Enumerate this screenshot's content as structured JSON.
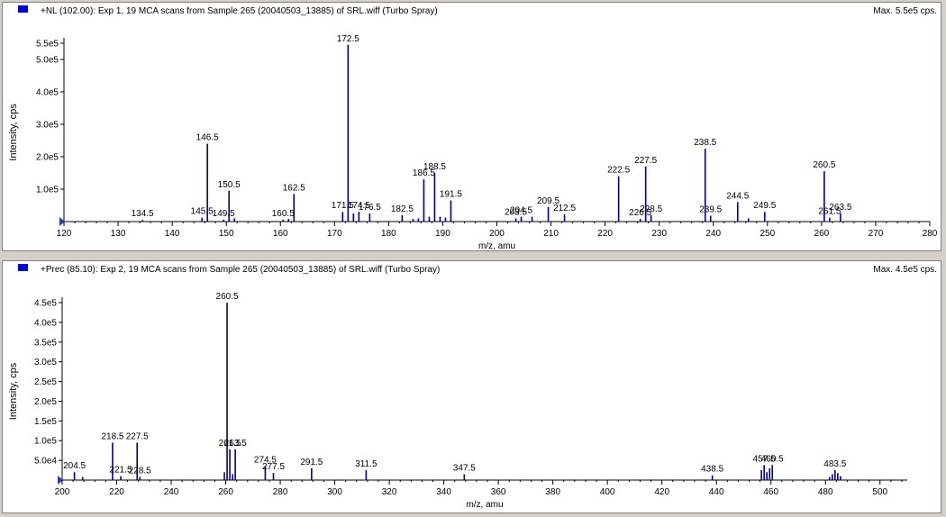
{
  "colors": {
    "series": "#00008b",
    "axis": "#000000",
    "marker": "#0000cd"
  },
  "chart_data": [
    {
      "type": "bar",
      "title": "+NL (102.00): Exp 1, 19 MCA scans from Sample 265 (20040503_13885) of SRL.wiff (Turbo Spray)",
      "max_label": "Max. 5.5e5 cps.",
      "xlabel": "m/z, amu",
      "ylabel": "Intensity, cps",
      "xlim": [
        120,
        280
      ],
      "ylim": [
        0,
        550000
      ],
      "x_ticks": [
        "120",
        "130",
        "140",
        "150",
        "160",
        "170",
        "180",
        "190",
        "200",
        "210",
        "220",
        "230",
        "240",
        "250",
        "260",
        "270",
        "280"
      ],
      "y_ticks": [
        {
          "label": "1.0e5",
          "value": 100000
        },
        {
          "label": "2.0e5",
          "value": 200000
        },
        {
          "label": "3.0e5",
          "value": 300000
        },
        {
          "label": "4.0e5",
          "value": 400000
        },
        {
          "label": "5.0e5",
          "value": 500000
        },
        {
          "label": "5.5e5",
          "value": 550000
        }
      ],
      "peaks": [
        {
          "x": 134.5,
          "y": 5000,
          "label": "134.5"
        },
        {
          "x": 145.5,
          "y": 12000,
          "label": "145.5"
        },
        {
          "x": 146.5,
          "y": 240000,
          "label": "146.5"
        },
        {
          "x": 149.5,
          "y": 6000,
          "label": "149.5"
        },
        {
          "x": 150.5,
          "y": 95000,
          "label": "150.5"
        },
        {
          "x": 151.5,
          "y": 10000
        },
        {
          "x": 160.5,
          "y": 6000,
          "label": "160.5"
        },
        {
          "x": 161.5,
          "y": 8000
        },
        {
          "x": 162.5,
          "y": 85000,
          "label": "162.5"
        },
        {
          "x": 171.5,
          "y": 30000,
          "label": "171.5"
        },
        {
          "x": 172.5,
          "y": 545000,
          "label": "172.5"
        },
        {
          "x": 173.5,
          "y": 25000
        },
        {
          "x": 174.5,
          "y": 30000,
          "label": "174.5"
        },
        {
          "x": 176.5,
          "y": 25000,
          "label": "176.5"
        },
        {
          "x": 182.5,
          "y": 20000,
          "label": "182.5"
        },
        {
          "x": 184.5,
          "y": 8000
        },
        {
          "x": 185.5,
          "y": 10000
        },
        {
          "x": 186.5,
          "y": 130000,
          "label": "186.5"
        },
        {
          "x": 187.5,
          "y": 15000
        },
        {
          "x": 188.5,
          "y": 150000,
          "label": "188.5"
        },
        {
          "x": 189.5,
          "y": 15000
        },
        {
          "x": 190.5,
          "y": 12000
        },
        {
          "x": 191.5,
          "y": 65000,
          "label": "191.5"
        },
        {
          "x": 203.5,
          "y": 10000,
          "label": "203.5"
        },
        {
          "x": 204.5,
          "y": 15000,
          "label": "204.5"
        },
        {
          "x": 206.5,
          "y": 15000
        },
        {
          "x": 209.5,
          "y": 45000,
          "label": "209.5"
        },
        {
          "x": 212.5,
          "y": 22000,
          "label": "212.5"
        },
        {
          "x": 222.5,
          "y": 140000,
          "label": "222.5"
        },
        {
          "x": 226.5,
          "y": 8000,
          "label": "226.5"
        },
        {
          "x": 227.5,
          "y": 170000,
          "label": "227.5"
        },
        {
          "x": 228.5,
          "y": 20000,
          "label": "228.5"
        },
        {
          "x": 238.5,
          "y": 225000,
          "label": "238.5"
        },
        {
          "x": 239.5,
          "y": 18000,
          "label": "239.5"
        },
        {
          "x": 244.5,
          "y": 60000,
          "label": "244.5"
        },
        {
          "x": 246.5,
          "y": 10000
        },
        {
          "x": 249.5,
          "y": 30000,
          "label": "249.5"
        },
        {
          "x": 260.5,
          "y": 155000,
          "label": "260.5"
        },
        {
          "x": 261.5,
          "y": 12000,
          "label": "261.5"
        },
        {
          "x": 263.5,
          "y": 25000,
          "label": "263.5"
        }
      ]
    },
    {
      "type": "bar",
      "title": "+Prec (85.10): Exp 2, 19 MCA scans from Sample 265 (20040503_13885) of SRL.wiff (Turbo Spray)",
      "max_label": "Max. 4.5e5 cps.",
      "xlabel": "m/z, amu",
      "ylabel": "Intensity, cps",
      "xlim": [
        200,
        510
      ],
      "ylim": [
        0,
        450000
      ],
      "x_ticks": [
        "200",
        "220",
        "240",
        "260",
        "280",
        "300",
        "320",
        "340",
        "360",
        "380",
        "400",
        "420",
        "440",
        "460",
        "480",
        "500"
      ],
      "y_ticks": [
        {
          "label": "5.0e4",
          "value": 50000
        },
        {
          "label": "1.0e5",
          "value": 100000
        },
        {
          "label": "1.5e5",
          "value": 150000
        },
        {
          "label": "2.0e5",
          "value": 200000
        },
        {
          "label": "2.5e5",
          "value": 250000
        },
        {
          "label": "3.0e5",
          "value": 300000
        },
        {
          "label": "3.5e5",
          "value": 350000
        },
        {
          "label": "4.0e5",
          "value": 400000
        },
        {
          "label": "4.5e5",
          "value": 450000
        }
      ],
      "peaks": [
        {
          "x": 204.5,
          "y": 20000,
          "label": "204.5"
        },
        {
          "x": 207.5,
          "y": 8000
        },
        {
          "x": 218.5,
          "y": 95000,
          "label": "218.5"
        },
        {
          "x": 221.5,
          "y": 10000,
          "label": "221.5"
        },
        {
          "x": 227.5,
          "y": 95000,
          "label": "227.5"
        },
        {
          "x": 228.5,
          "y": 8000,
          "label": "228.5"
        },
        {
          "x": 259.5,
          "y": 20000
        },
        {
          "x": 260.5,
          "y": 450000,
          "label": "260.5"
        },
        {
          "x": 261.5,
          "y": 78000,
          "label": "261.5"
        },
        {
          "x": 262.5,
          "y": 15000
        },
        {
          "x": 263.5,
          "y": 78000,
          "label": "263.5"
        },
        {
          "x": 274.5,
          "y": 35000,
          "label": "274.5"
        },
        {
          "x": 277.5,
          "y": 18000,
          "label": "277.5"
        },
        {
          "x": 291.5,
          "y": 30000,
          "label": "291.5"
        },
        {
          "x": 311.5,
          "y": 25000,
          "label": "311.5"
        },
        {
          "x": 347.5,
          "y": 15000,
          "label": "347.5"
        },
        {
          "x": 438.5,
          "y": 12000,
          "label": "438.5"
        },
        {
          "x": 456.5,
          "y": 25000
        },
        {
          "x": 457.5,
          "y": 38000,
          "label": "457.5"
        },
        {
          "x": 458.5,
          "y": 20000
        },
        {
          "x": 459.5,
          "y": 30000
        },
        {
          "x": 460.5,
          "y": 38000,
          "label": "460.5"
        },
        {
          "x": 481.5,
          "y": 8000
        },
        {
          "x": 482.5,
          "y": 15000
        },
        {
          "x": 483.5,
          "y": 25000,
          "label": "483.5"
        },
        {
          "x": 484.5,
          "y": 18000
        },
        {
          "x": 485.5,
          "y": 10000
        }
      ]
    }
  ]
}
